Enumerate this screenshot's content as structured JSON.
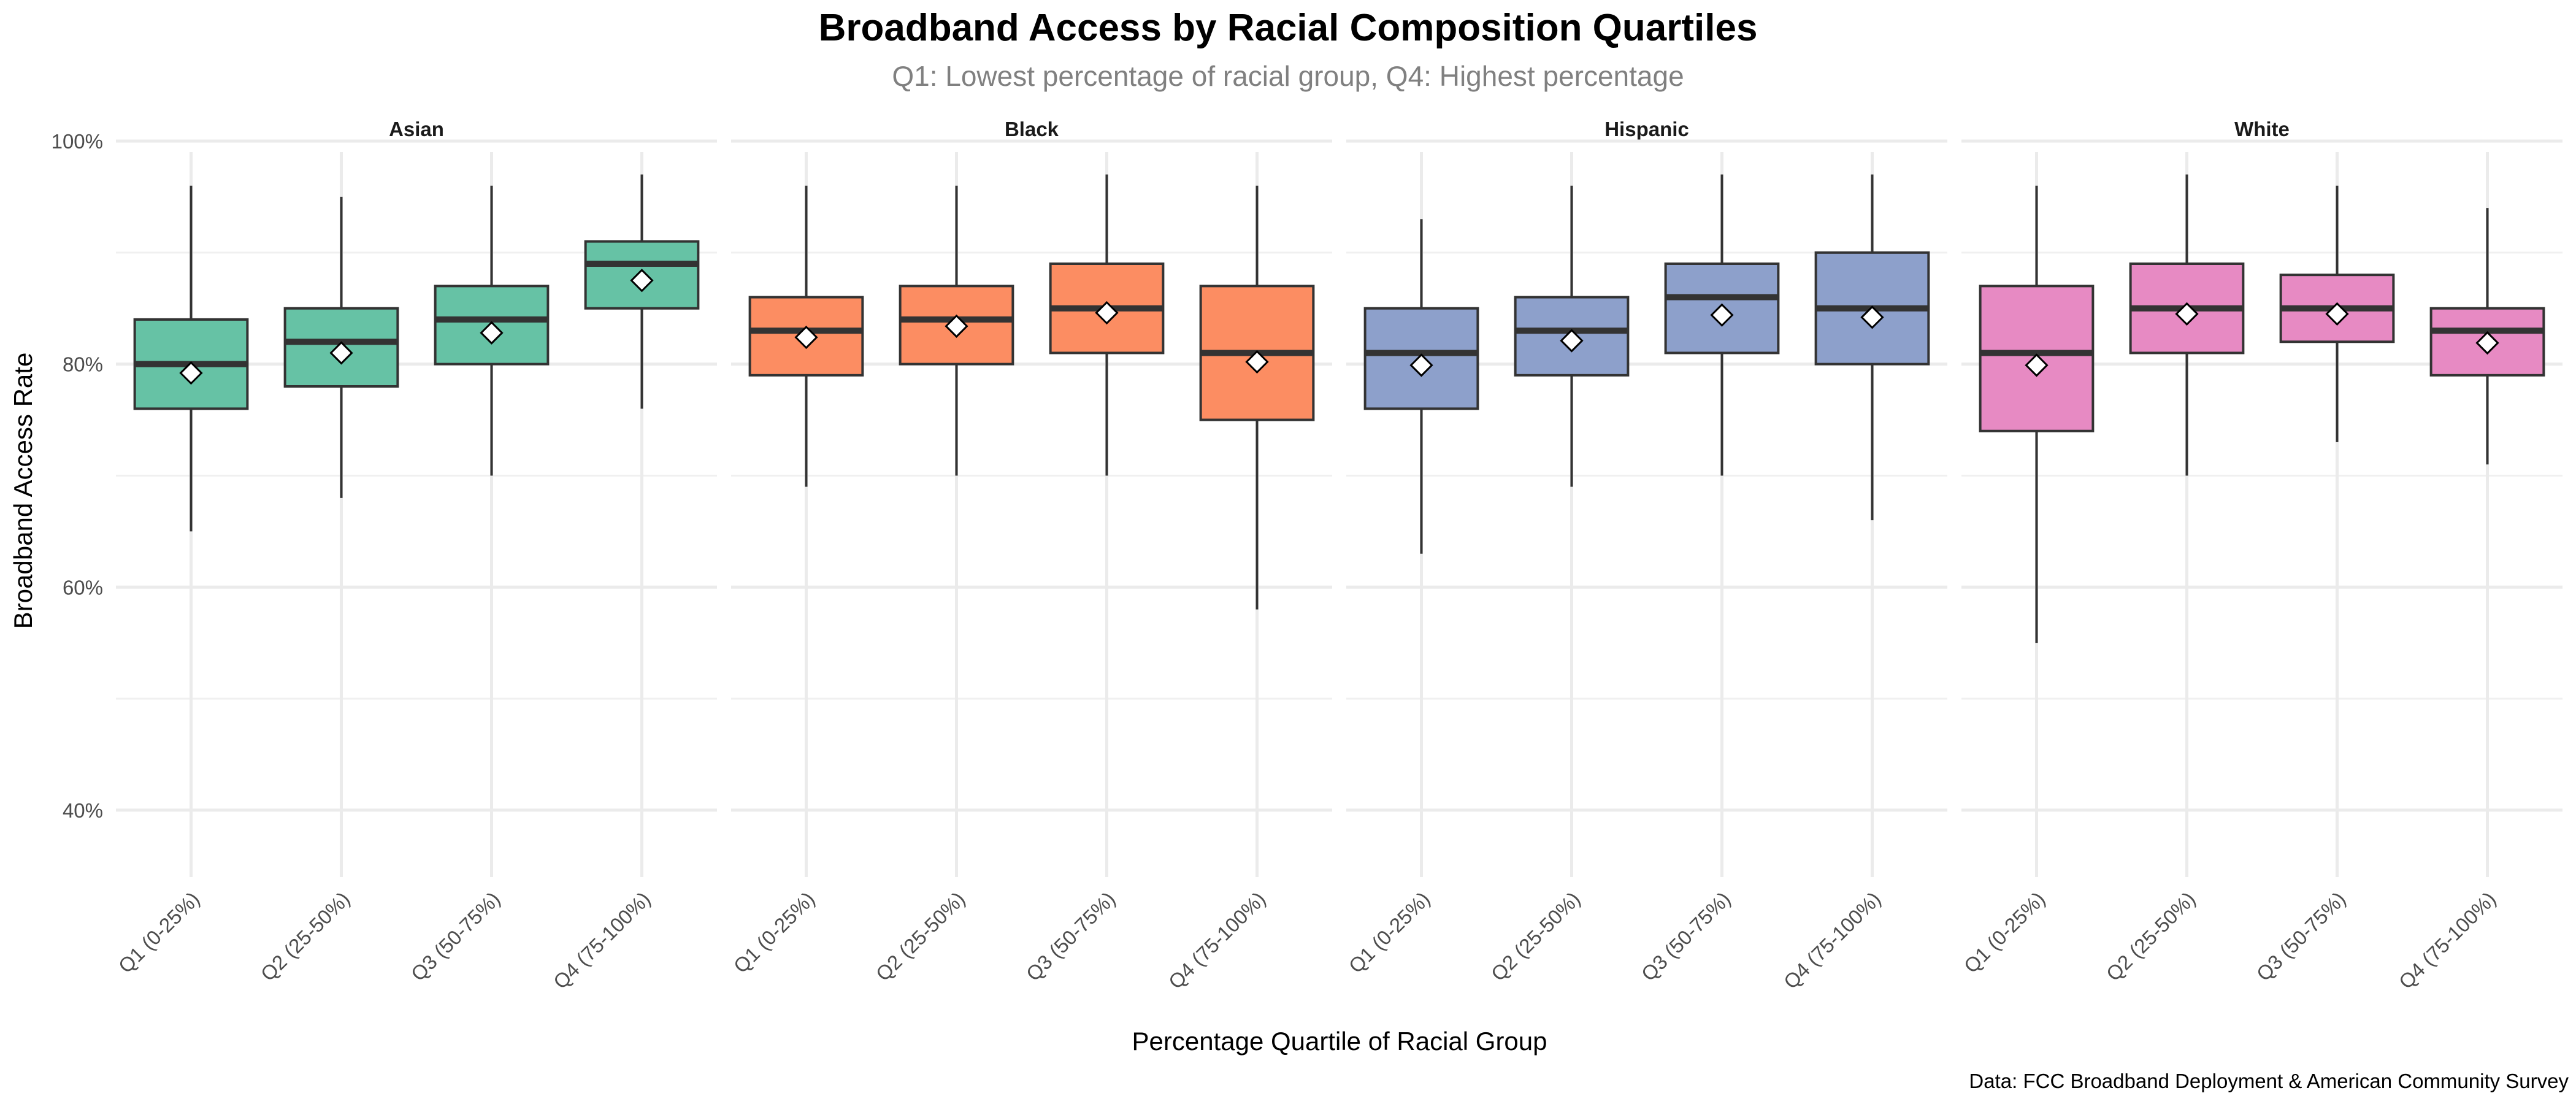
{
  "chart_data": {
    "type": "box",
    "title": "Broadband Access by Racial Composition Quartiles",
    "subtitle": "Q1: Lowest percentage of racial group, Q4: Highest percentage",
    "xlabel": "Percentage Quartile of Racial Group",
    "ylabel": "Broadband Access Rate",
    "caption": "Data: FCC Broadband Deployment & American Community Survey",
    "ylim": [
      0.34,
      1.0
    ],
    "y_ticks": [
      {
        "value": 0.4,
        "label": "40%"
      },
      {
        "value": 0.6,
        "label": "60%"
      },
      {
        "value": 0.8,
        "label": "80%"
      },
      {
        "value": 1.0,
        "label": "100%"
      }
    ],
    "y_minor_ticks": [
      0.5,
      0.7,
      0.9
    ],
    "grid": true,
    "categories": [
      "Q1 (0-25%)",
      "Q2 (25-50%)",
      "Q3 (50-75%)",
      "Q4 (75-100%)"
    ],
    "mean_marker": "white diamond",
    "panels": [
      {
        "name": "Asian",
        "color": "#66C2A5",
        "boxes": [
          {
            "whisker_low": 0.65,
            "q1": 0.76,
            "median": 0.8,
            "q3": 0.84,
            "whisker_high": 0.96,
            "mean": 0.792
          },
          {
            "whisker_low": 0.68,
            "q1": 0.78,
            "median": 0.82,
            "q3": 0.85,
            "whisker_high": 0.95,
            "mean": 0.81
          },
          {
            "whisker_low": 0.7,
            "q1": 0.8,
            "median": 0.84,
            "q3": 0.87,
            "whisker_high": 0.96,
            "mean": 0.828
          },
          {
            "whisker_low": 0.76,
            "q1": 0.85,
            "median": 0.89,
            "q3": 0.91,
            "whisker_high": 0.97,
            "mean": 0.875
          }
        ]
      },
      {
        "name": "Black",
        "color": "#FC8D62",
        "boxes": [
          {
            "whisker_low": 0.69,
            "q1": 0.79,
            "median": 0.83,
            "q3": 0.86,
            "whisker_high": 0.96,
            "mean": 0.824
          },
          {
            "whisker_low": 0.7,
            "q1": 0.8,
            "median": 0.84,
            "q3": 0.87,
            "whisker_high": 0.96,
            "mean": 0.834
          },
          {
            "whisker_low": 0.7,
            "q1": 0.81,
            "median": 0.85,
            "q3": 0.89,
            "whisker_high": 0.97,
            "mean": 0.846
          },
          {
            "whisker_low": 0.58,
            "q1": 0.75,
            "median": 0.81,
            "q3": 0.87,
            "whisker_high": 0.96,
            "mean": 0.802
          }
        ]
      },
      {
        "name": "Hispanic",
        "color": "#8DA0CB",
        "boxes": [
          {
            "whisker_low": 0.63,
            "q1": 0.76,
            "median": 0.81,
            "q3": 0.85,
            "whisker_high": 0.93,
            "mean": 0.799
          },
          {
            "whisker_low": 0.69,
            "q1": 0.79,
            "median": 0.83,
            "q3": 0.86,
            "whisker_high": 0.96,
            "mean": 0.821
          },
          {
            "whisker_low": 0.7,
            "q1": 0.81,
            "median": 0.86,
            "q3": 0.89,
            "whisker_high": 0.97,
            "mean": 0.844
          },
          {
            "whisker_low": 0.66,
            "q1": 0.8,
            "median": 0.85,
            "q3": 0.9,
            "whisker_high": 0.97,
            "mean": 0.842
          }
        ]
      },
      {
        "name": "White",
        "color": "#E78AC3",
        "boxes": [
          {
            "whisker_low": 0.55,
            "q1": 0.74,
            "median": 0.81,
            "q3": 0.87,
            "whisker_high": 0.96,
            "mean": 0.799
          },
          {
            "whisker_low": 0.7,
            "q1": 0.81,
            "median": 0.85,
            "q3": 0.89,
            "whisker_high": 0.97,
            "mean": 0.845
          },
          {
            "whisker_low": 0.73,
            "q1": 0.82,
            "median": 0.85,
            "q3": 0.88,
            "whisker_high": 0.96,
            "mean": 0.845
          },
          {
            "whisker_low": 0.71,
            "q1": 0.79,
            "median": 0.83,
            "q3": 0.85,
            "whisker_high": 0.94,
            "mean": 0.819
          }
        ]
      }
    ]
  }
}
